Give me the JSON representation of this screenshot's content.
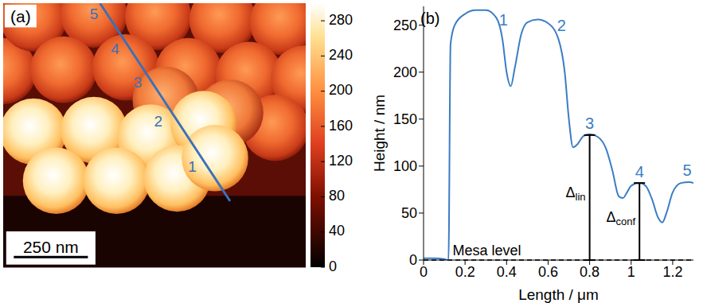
{
  "chart_data": [
    {
      "type": "image",
      "label": "(a)",
      "scale_bar": "250 nm",
      "profile_labels": [
        "1",
        "2",
        "3",
        "4",
        "5"
      ],
      "colorbar": {
        "range": [
          0,
          300
        ],
        "ticks": [
          0,
          40,
          80,
          120,
          160,
          200,
          240,
          280
        ]
      }
    },
    {
      "type": "line",
      "label": "(b)",
      "x_label": "Length / μm",
      "y_label": "Height / nm",
      "x": [
        0,
        0.05,
        0.1,
        0.12,
        0.13,
        0.15,
        0.2,
        0.25,
        0.3,
        0.35,
        0.38,
        0.4,
        0.42,
        0.44,
        0.47,
        0.5,
        0.55,
        0.6,
        0.65,
        0.68,
        0.7,
        0.72,
        0.74,
        0.77,
        0.8,
        0.84,
        0.88,
        0.91,
        0.94,
        0.96,
        0.98,
        1.0,
        1.04,
        1.07,
        1.1,
        1.13,
        1.15,
        1.17,
        1.2,
        1.24,
        1.28,
        1.3
      ],
      "values": [
        2,
        2,
        1,
        0,
        230,
        250,
        262,
        266,
        266,
        258,
        235,
        200,
        185,
        205,
        240,
        253,
        256,
        252,
        235,
        200,
        150,
        120,
        123,
        132,
        134,
        131,
        118,
        95,
        68,
        66,
        72,
        79,
        82,
        79,
        65,
        45,
        40,
        50,
        72,
        82,
        83,
        82
      ],
      "color": "#3b7dc4",
      "xlim": [
        0,
        1.3
      ],
      "xticks": [
        0,
        0.2,
        0.4,
        0.6,
        0.8,
        1,
        1.2
      ],
      "ylim": [
        0,
        270
      ],
      "yticks": [
        0,
        50,
        100,
        150,
        200,
        250
      ],
      "peak_labels": [
        "1",
        "2",
        "3",
        "4",
        "5"
      ],
      "mesa_level": {
        "text": "Mesa level",
        "value": 0
      },
      "brackets": [
        {
          "text": "Δ",
          "subscript": "lin",
          "x": 0.8,
          "value": 133
        },
        {
          "text": "Δ",
          "subscript": "conf",
          "x": 1.04,
          "value": 82
        }
      ]
    }
  ]
}
